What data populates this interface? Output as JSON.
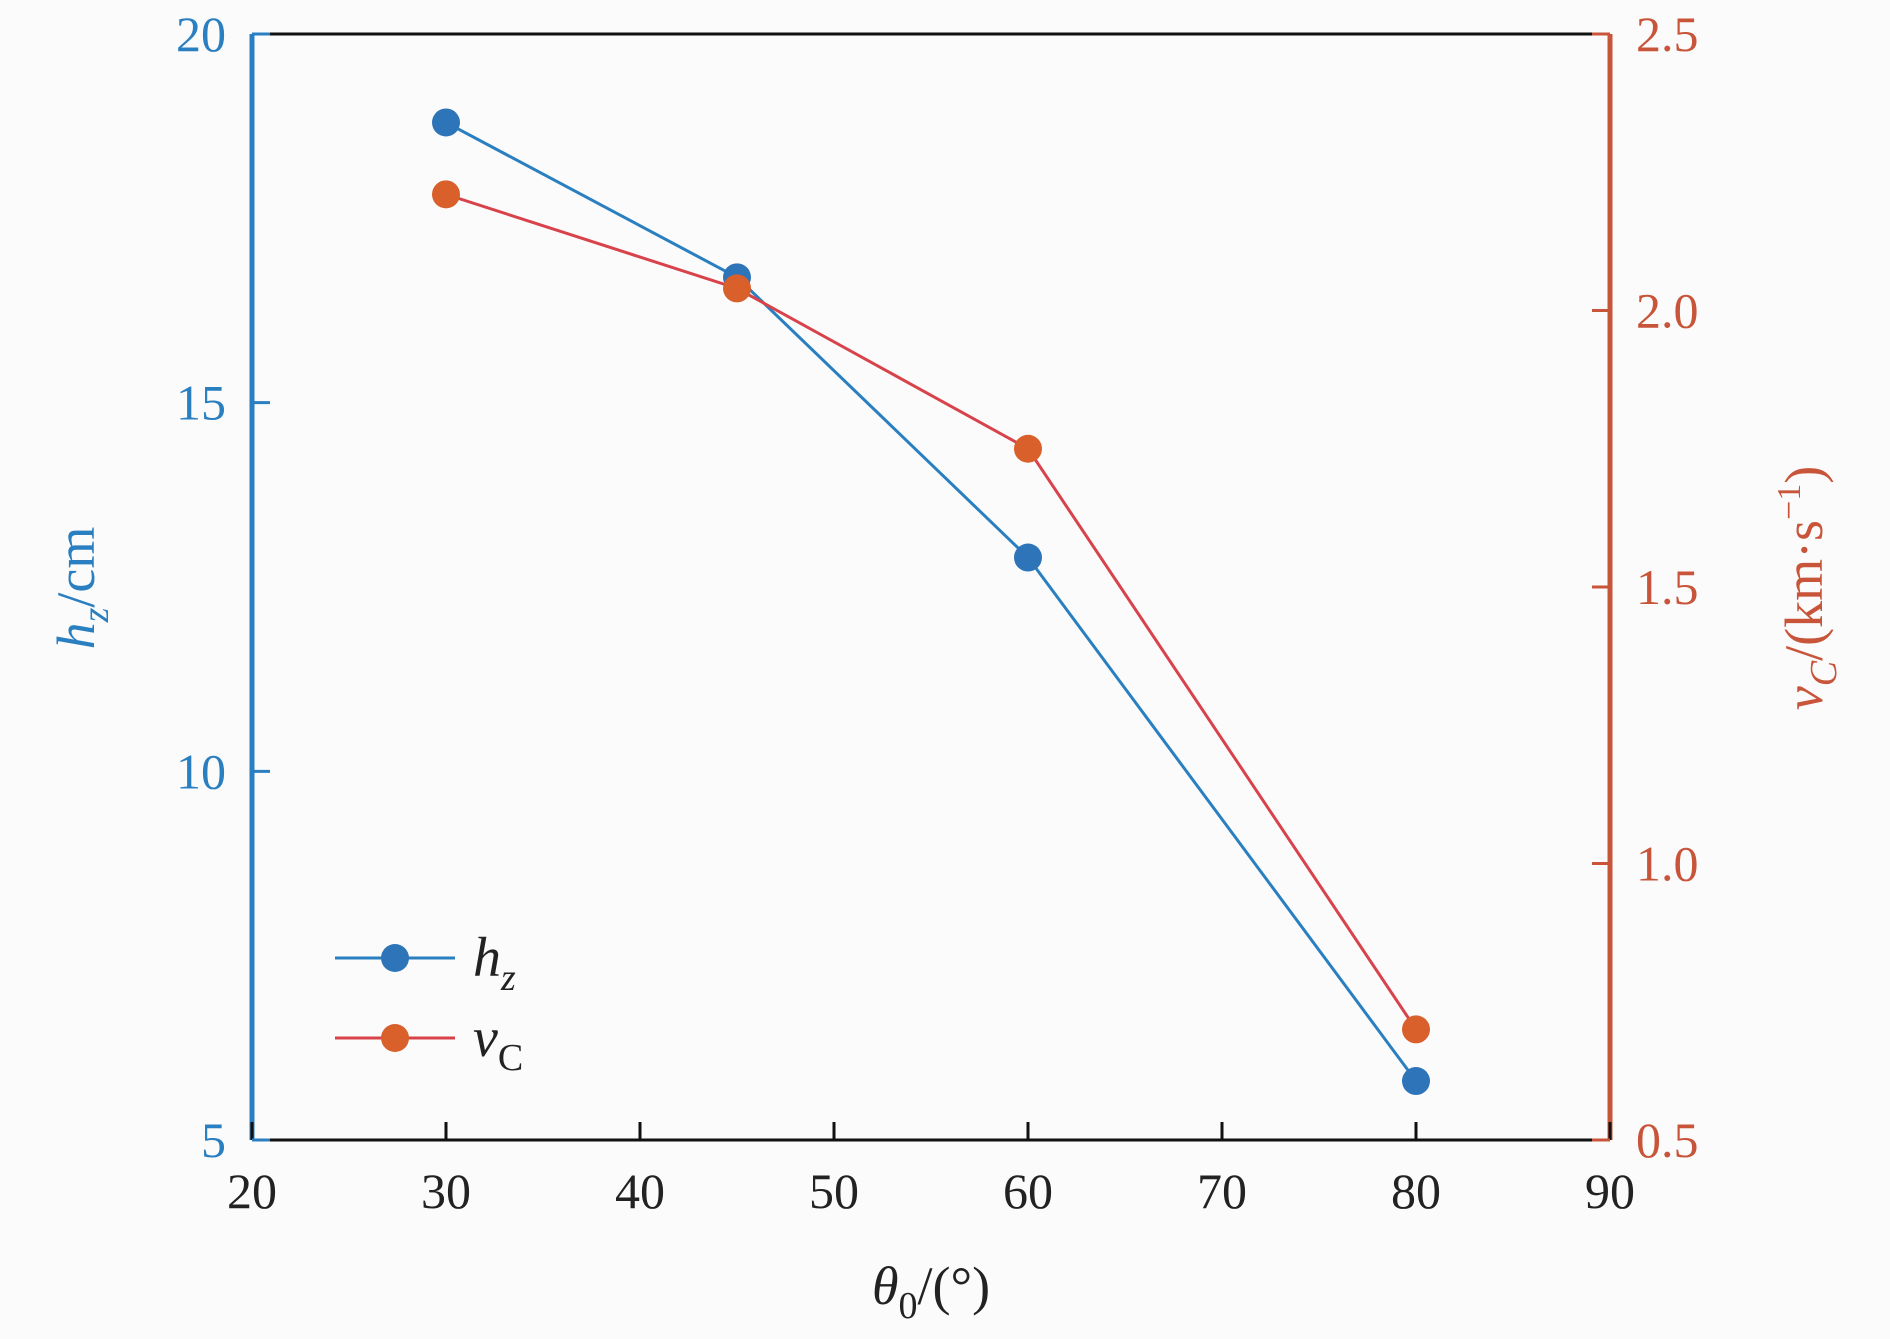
{
  "chart_data": {
    "type": "line",
    "x": [
      30,
      45,
      60,
      80
    ],
    "xlim": [
      20,
      90
    ],
    "xticks": [
      "20",
      "30",
      "40",
      "50",
      "60",
      "70",
      "80",
      "90"
    ],
    "xlabel": {
      "main": "θ",
      "sub": "0",
      "suffix": "/(°)"
    },
    "y_left": {
      "lim": [
        5,
        20
      ],
      "ticks": [
        "5",
        "10",
        "15",
        "20"
      ],
      "label": {
        "main": "h",
        "sub": "z",
        "suffix": "/cm"
      },
      "color": "#2a7fc0"
    },
    "y_right": {
      "lim": [
        0.5,
        2.5
      ],
      "ticks": [
        "0.5",
        "1.0",
        "1.5",
        "2.0",
        "2.5"
      ],
      "label": {
        "main": "v",
        "sub": "C",
        "suffix": "/(km·s",
        "sup": "−1",
        "close": ")"
      },
      "color": "#c8553a"
    },
    "series": [
      {
        "name": "h",
        "name_sub": "z",
        "axis": "left",
        "color": "#2a7fc0",
        "marker_color": "#2e74b8",
        "values": [
          18.8,
          16.7,
          12.9,
          5.8
        ]
      },
      {
        "name": "v",
        "name_sub": "C",
        "axis": "right",
        "color": "#d8434b",
        "marker_color": "#d95f2b",
        "values": [
          2.21,
          2.04,
          1.75,
          0.7
        ]
      }
    ],
    "legend_position": "bottom-left",
    "grid": false
  }
}
